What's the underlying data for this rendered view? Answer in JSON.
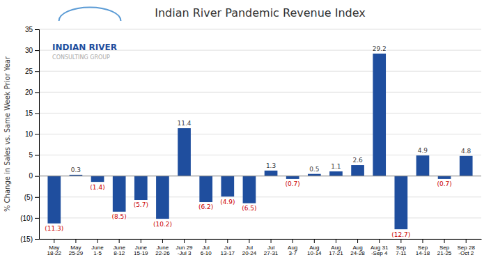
{
  "chart_data": {
    "type": "bar",
    "title": "Indian River Pandemic Revenue Index",
    "ylabel": "% Change in Sales vs. Same Week Prior Year",
    "categories": [
      "May\n18-22",
      "May\n25-29",
      "June\n1-5",
      "June\n8-12",
      "June\n15-19",
      "June\n22-26",
      "Jun 29\n-Jul 3",
      "Jul\n6-10",
      "Jul\n13-17",
      "Jul\n20-24",
      "Jul\n27-31",
      "Aug\n3-7",
      "Aug\n10-14",
      "Aug\n17-21",
      "Aug\n24-28",
      "Aug 31\n-Sep 4",
      "Sep\n7-11",
      "Sep\n14-18",
      "Sep\n21-25",
      "Sep 28\n-Oct 2"
    ],
    "values": [
      -11.3,
      0.3,
      -1.4,
      -8.5,
      -5.7,
      -10.2,
      11.4,
      -6.2,
      -4.9,
      -6.5,
      1.3,
      -0.7,
      0.5,
      1.1,
      2.6,
      29.2,
      -12.7,
      4.9,
      -0.7,
      4.8
    ],
    "value_labels": [
      "(11.3)",
      "0.3",
      "(1.4)",
      "(8.5)",
      "(5.7)",
      "(10.2)",
      "11.4",
      "(6.2)",
      "(4.9)",
      "(6.5)",
      "1.3",
      "(0.7)",
      "0.5",
      "1.1",
      "2.6",
      "29.2",
      "(12.7)",
      "4.9",
      "(0.7)",
      "4.8"
    ],
    "data_labels": true,
    "color": "#1f4e9e",
    "ylim": [
      -15,
      35
    ],
    "yticks": [
      {
        "value": -15,
        "label": "(15)"
      },
      {
        "value": -10,
        "label": "(10)"
      },
      {
        "value": -5,
        "label": "(5)"
      },
      0,
      5,
      10,
      15,
      20,
      25,
      30,
      35
    ],
    "grid": true,
    "annotations": [
      "INDIAN RIVER",
      "CONSULTING GROUP"
    ]
  }
}
